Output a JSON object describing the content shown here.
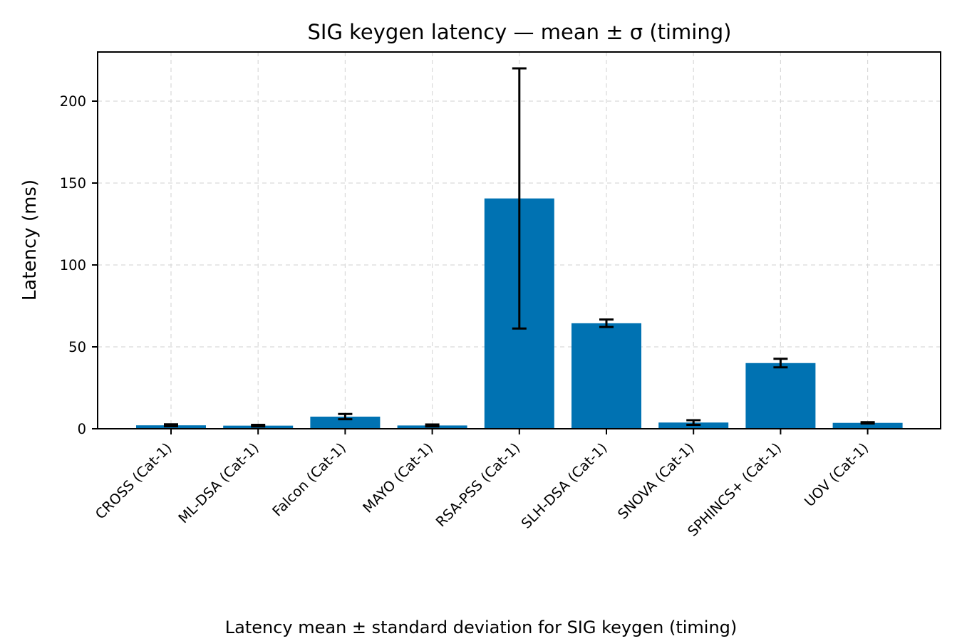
{
  "chart_data": {
    "type": "bar",
    "title": "SIG keygen latency — mean ± σ (timing)",
    "xlabel": "",
    "ylabel": "Latency (ms)",
    "caption": "Latency mean ± standard deviation for SIG keygen (timing)",
    "categories": [
      "CROSS (Cat-1)",
      "ML-DSA (Cat-1)",
      "Falcon (Cat-1)",
      "MAYO (Cat-1)",
      "RSA-PSS (Cat-1)",
      "SLH-DSA (Cat-1)",
      "SNOVA (Cat-1)",
      "SPHINCS+ (Cat-1)",
      "UOV (Cat-1)"
    ],
    "values": [
      2.1,
      1.9,
      7.4,
      2.0,
      140.6,
      64.4,
      3.8,
      40.1,
      3.6
    ],
    "errors": [
      0.6,
      0.5,
      1.6,
      0.6,
      79.4,
      2.3,
      1.4,
      2.6,
      0.4
    ],
    "ylim": [
      0,
      230
    ],
    "yticks": [
      0,
      50,
      100,
      150,
      200
    ],
    "grid": true,
    "colors": {
      "bar": "#0072b2",
      "error": "#000000",
      "grid": "#d9d9d9",
      "axis": "#000000"
    }
  }
}
